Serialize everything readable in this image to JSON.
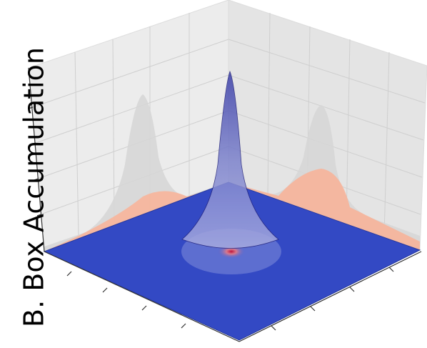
{
  "chart_data": {
    "type": "surface3d",
    "zlabel": "B. Box Accumulation"
  }
}
